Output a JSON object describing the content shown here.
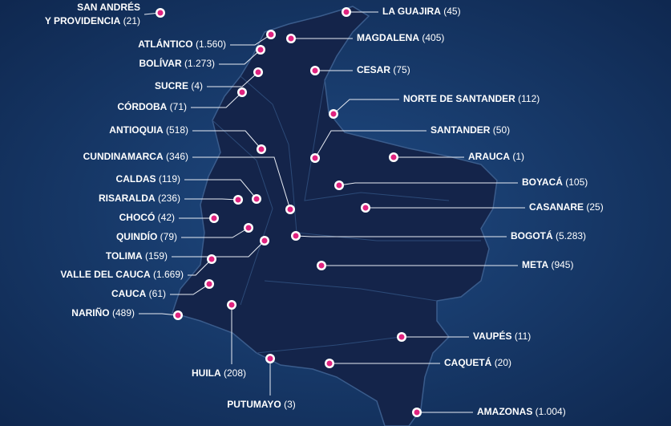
{
  "regions": [
    {
      "name": "SAN ANDRÉS",
      "name_line2": "Y PROVIDENCIA",
      "count": "(21)"
    },
    {
      "name": "LA GUAJIRA",
      "count": "(45)"
    },
    {
      "name": "ATLÁNTICO",
      "count": "(1.560)"
    },
    {
      "name": "MAGDALENA",
      "count": "(405)"
    },
    {
      "name": "BOLÍVAR",
      "count": "(1.273)"
    },
    {
      "name": "SUCRE",
      "count": "(4)"
    },
    {
      "name": "CESAR",
      "count": "(75)"
    },
    {
      "name": "CÓRDOBA",
      "count": "(71)"
    },
    {
      "name": "NORTE DE SANTANDER",
      "count": "(112)"
    },
    {
      "name": "ANTIOQUIA",
      "count": "(518)"
    },
    {
      "name": "SANTANDER",
      "count": "(50)"
    },
    {
      "name": "ARAUCA",
      "count": "(1)"
    },
    {
      "name": "CUNDINAMARCA",
      "count": "(346)"
    },
    {
      "name": "CALDAS",
      "count": "(119)"
    },
    {
      "name": "RISARALDA",
      "count": "(236)"
    },
    {
      "name": "BOYACÁ",
      "count": "(105)"
    },
    {
      "name": "CASANARE",
      "count": "(25)"
    },
    {
      "name": "CHOCÓ",
      "count": "(42)"
    },
    {
      "name": "QUINDÍO",
      "count": "(79)"
    },
    {
      "name": "TOLIMA",
      "count": "(159)"
    },
    {
      "name": "BOGOTÁ",
      "count": "(5.283)"
    },
    {
      "name": "VALLE DEL CAUCA",
      "count": "(1.669)"
    },
    {
      "name": "META",
      "count": "(945)"
    },
    {
      "name": "CAUCA",
      "count": "(61)"
    },
    {
      "name": "NARIÑO",
      "count": "(489)"
    },
    {
      "name": "HUILA",
      "count": "(208)"
    },
    {
      "name": "VAUPÉS",
      "count": "(11)"
    },
    {
      "name": "CAQUETÁ",
      "count": "(20)"
    },
    {
      "name": "PUTUMAYO",
      "count": "(3)"
    },
    {
      "name": "AMAZONAS",
      "count": "(1.004)"
    }
  ]
}
